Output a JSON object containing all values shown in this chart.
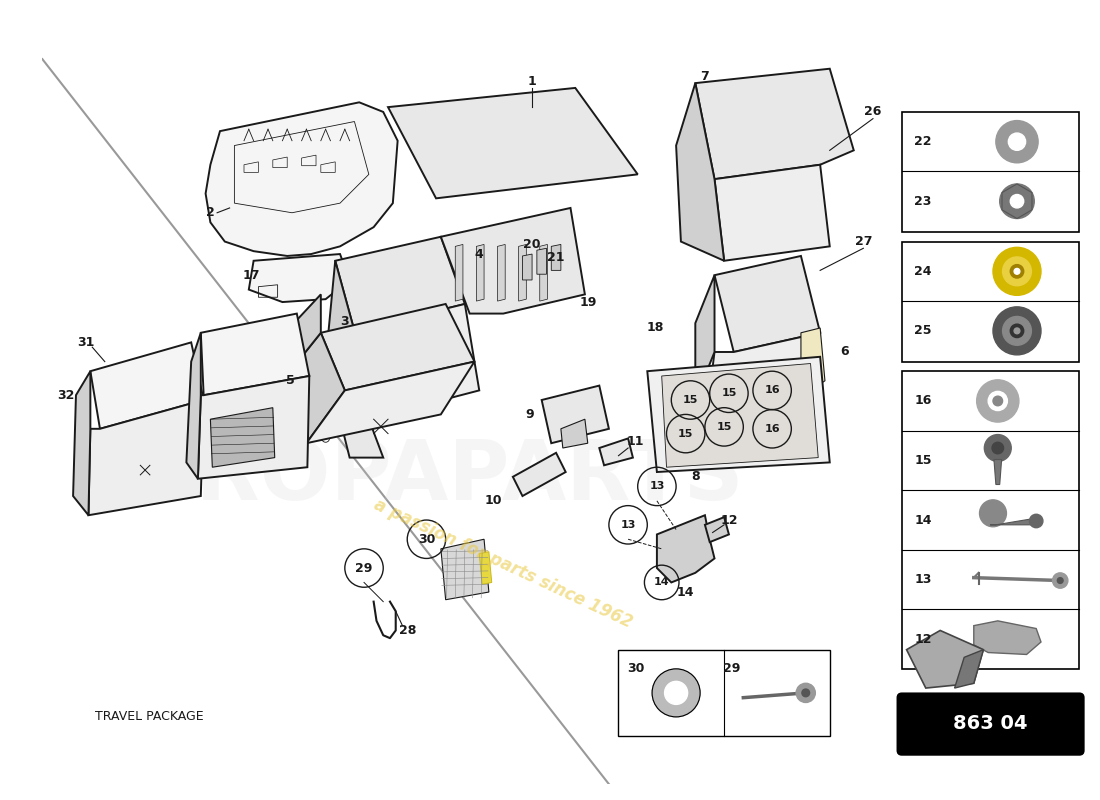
{
  "background_color": "#ffffff",
  "line_color": "#1a1a1a",
  "part_number": "863 04",
  "watermark_text": "a passion for parts since 1962",
  "watermark_color": "#e8c840",
  "travel_package_text": "TRAVEL PACKAGE",
  "light_fill": "#e8e8e8",
  "mid_fill": "#d0d0d0",
  "dark_fill": "#b0b0b0",
  "white_fill": "#ffffff",
  "lw_main": 1.4,
  "lw_thin": 0.7,
  "label_fs": 9,
  "small_label_fs": 8
}
